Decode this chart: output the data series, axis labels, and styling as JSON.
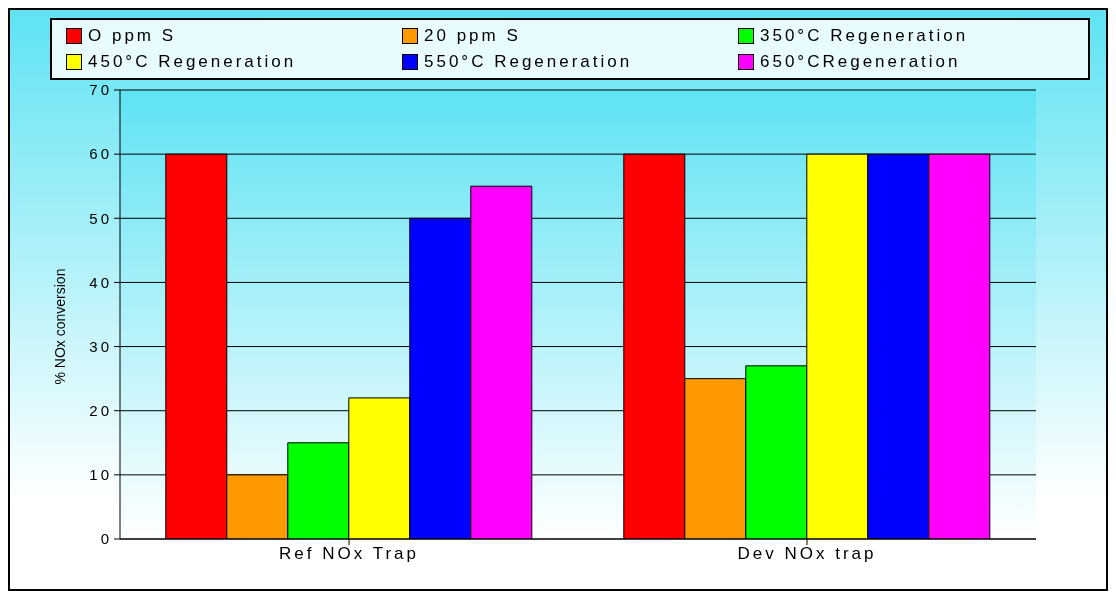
{
  "chart_data": {
    "type": "bar",
    "ylabel": "% NOx conversion",
    "categories": [
      "Ref NOx Trap",
      "Dev NOx trap"
    ],
    "series": [
      {
        "name": "O ppm S",
        "color": "#ff0000",
        "values": [
          60,
          60
        ]
      },
      {
        "name": "20 ppm S",
        "color": "#ff9900",
        "values": [
          10,
          25
        ]
      },
      {
        "name": "350°C Regeneration",
        "color": "#00ff00",
        "values": [
          15,
          27
        ]
      },
      {
        "name": "450°C Regeneration",
        "color": "#ffff00",
        "values": [
          22,
          60
        ]
      },
      {
        "name": "550°C Regeneration",
        "color": "#0000ff",
        "values": [
          50,
          60
        ]
      },
      {
        "name": "650°CRegeneration",
        "color": "#ff00ff",
        "values": [
          55,
          60
        ]
      }
    ],
    "ylim": [
      0,
      70
    ],
    "yticks": [
      0,
      10,
      20,
      30,
      40,
      50,
      60,
      70
    ],
    "grid": "y",
    "legend": "top"
  }
}
